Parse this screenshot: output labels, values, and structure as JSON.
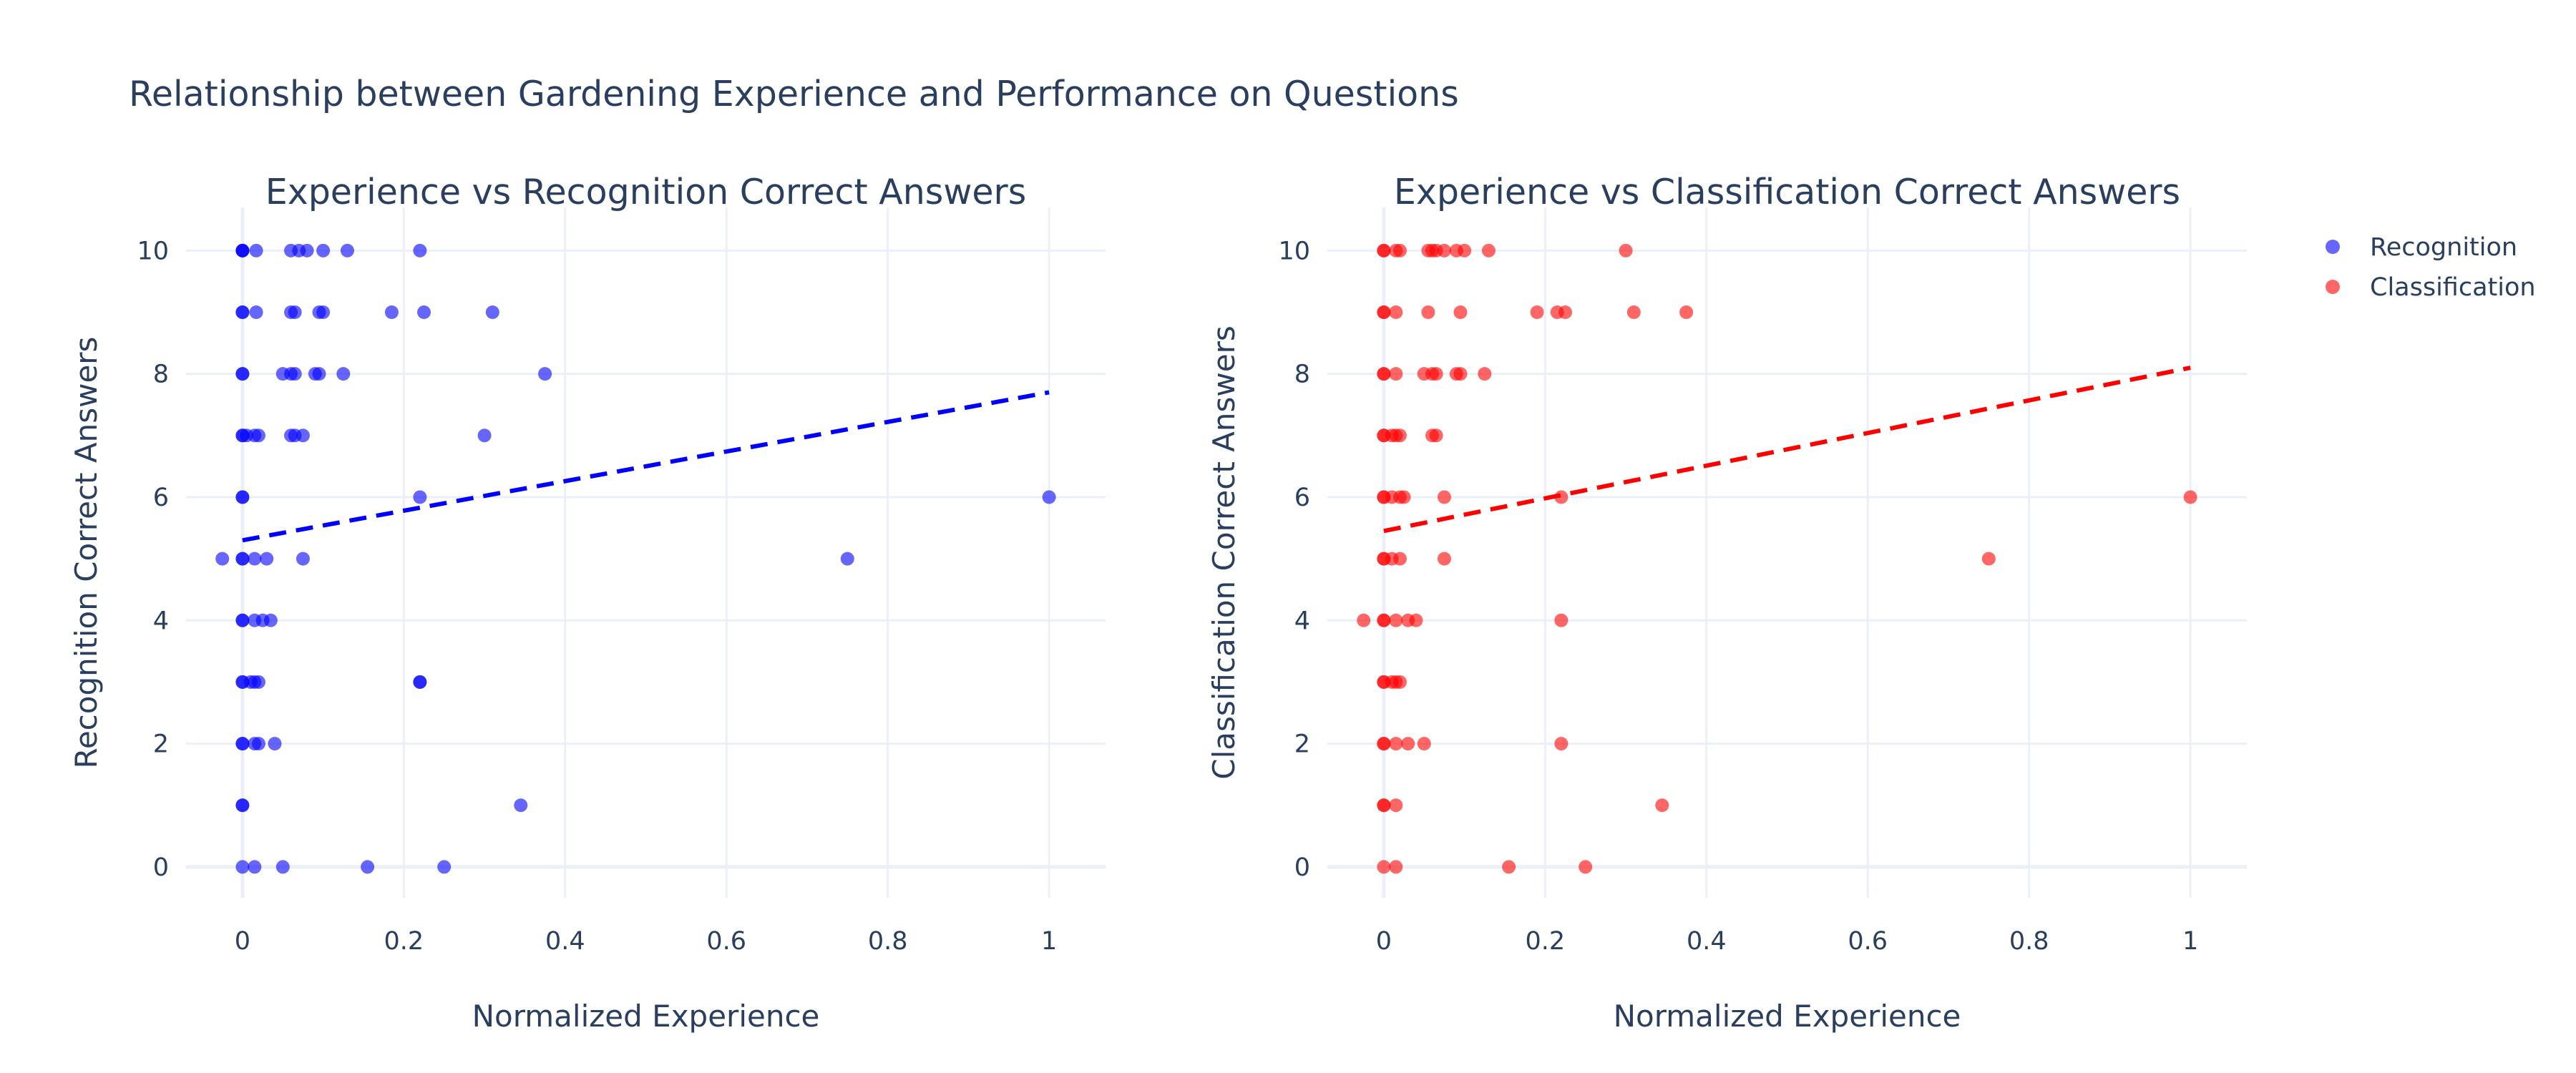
{
  "figure": {
    "title": "Relationship between Gardening Experience and Performance on Questions"
  },
  "legend": {
    "items": [
      {
        "label": "Recognition",
        "color": "#0000ff"
      },
      {
        "label": "Classification",
        "color": "#ff0000"
      }
    ]
  },
  "chart_data": [
    {
      "type": "scatter",
      "title": "Experience vs Recognition Correct Answers",
      "xlabel": "Normalized Experience",
      "ylabel": "Recognition Correct Answers",
      "xlim": [
        -0.07,
        1.07
      ],
      "ylim": [
        -0.5,
        10.7
      ],
      "xticks": [
        0,
        0.2,
        0.4,
        0.6,
        0.8,
        1
      ],
      "xtick_labels": [
        "0",
        "0.2",
        "0.4",
        "0.6",
        "0.8",
        "1"
      ],
      "yticks": [
        0,
        2,
        4,
        6,
        8,
        10
      ],
      "grid": true,
      "series": [
        {
          "name": "Recognition",
          "color": "#0000ff",
          "points": [
            [
              0,
              10
            ],
            [
              0,
              10
            ],
            [
              0,
              10
            ],
            [
              0.017,
              10
            ],
            [
              0.06,
              10
            ],
            [
              0.07,
              10
            ],
            [
              0.08,
              10
            ],
            [
              0.1,
              10
            ],
            [
              0.13,
              10
            ],
            [
              0.22,
              10
            ],
            [
              0,
              9
            ],
            [
              0,
              9
            ],
            [
              0.017,
              9
            ],
            [
              0.06,
              9
            ],
            [
              0.065,
              9
            ],
            [
              0.095,
              9
            ],
            [
              0.1,
              9
            ],
            [
              0.185,
              9
            ],
            [
              0.225,
              9
            ],
            [
              0.31,
              9
            ],
            [
              0,
              8
            ],
            [
              0,
              8
            ],
            [
              0.05,
              8
            ],
            [
              0.06,
              8
            ],
            [
              0.065,
              8
            ],
            [
              0.09,
              8
            ],
            [
              0.095,
              8
            ],
            [
              0.125,
              8
            ],
            [
              0.375,
              8
            ],
            [
              0,
              7
            ],
            [
              0,
              7
            ],
            [
              0.005,
              7
            ],
            [
              0.015,
              7
            ],
            [
              0.02,
              7
            ],
            [
              0.06,
              7
            ],
            [
              0.065,
              7
            ],
            [
              0.075,
              7
            ],
            [
              0.3,
              7
            ],
            [
              0,
              6
            ],
            [
              0,
              6
            ],
            [
              0.22,
              6
            ],
            [
              1,
              6
            ],
            [
              -0.025,
              5
            ],
            [
              0,
              5
            ],
            [
              0,
              5
            ],
            [
              0.015,
              5
            ],
            [
              0.03,
              5
            ],
            [
              0.075,
              5
            ],
            [
              0.75,
              5
            ],
            [
              0,
              4
            ],
            [
              0,
              4
            ],
            [
              0.015,
              4
            ],
            [
              0.025,
              4
            ],
            [
              0.035,
              4
            ],
            [
              0,
              3
            ],
            [
              0,
              3
            ],
            [
              0.01,
              3
            ],
            [
              0.015,
              3
            ],
            [
              0.02,
              3
            ],
            [
              0.22,
              3
            ],
            [
              0.22,
              3
            ],
            [
              0,
              2
            ],
            [
              0,
              2
            ],
            [
              0.015,
              2
            ],
            [
              0.02,
              2
            ],
            [
              0.04,
              2
            ],
            [
              0,
              1
            ],
            [
              0,
              1
            ],
            [
              0.345,
              1
            ],
            [
              0,
              0
            ],
            [
              0.015,
              0
            ],
            [
              0.05,
              0
            ],
            [
              0.155,
              0
            ],
            [
              0.25,
              0
            ]
          ]
        },
        {
          "name": "Trend",
          "color": "#0000ff",
          "line": [
            [
              0,
              5.3
            ],
            [
              1,
              7.7
            ]
          ],
          "dash": true
        }
      ]
    },
    {
      "type": "scatter",
      "title": "Experience vs Classification Correct Answers",
      "xlabel": "Normalized Experience",
      "ylabel": "Classification Correct Answers",
      "xlim": [
        -0.07,
        1.07
      ],
      "ylim": [
        -0.5,
        10.7
      ],
      "xticks": [
        0,
        0.2,
        0.4,
        0.6,
        0.8,
        1
      ],
      "xtick_labels": [
        "0",
        "0.2",
        "0.4",
        "0.6",
        "0.8",
        "1"
      ],
      "yticks": [
        0,
        2,
        4,
        6,
        8,
        10
      ],
      "grid": true,
      "series": [
        {
          "name": "Classification",
          "color": "#ff0000",
          "points": [
            [
              0,
              10
            ],
            [
              0,
              10
            ],
            [
              0.015,
              10
            ],
            [
              0.02,
              10
            ],
            [
              0.055,
              10
            ],
            [
              0.06,
              10
            ],
            [
              0.065,
              10
            ],
            [
              0.075,
              10
            ],
            [
              0.09,
              10
            ],
            [
              0.1,
              10
            ],
            [
              0.13,
              10
            ],
            [
              0.3,
              10
            ],
            [
              0,
              9
            ],
            [
              0,
              9
            ],
            [
              0.015,
              9
            ],
            [
              0.055,
              9
            ],
            [
              0.095,
              9
            ],
            [
              0.19,
              9
            ],
            [
              0.215,
              9
            ],
            [
              0.225,
              9
            ],
            [
              0.31,
              9
            ],
            [
              0.375,
              9
            ],
            [
              0,
              8
            ],
            [
              0,
              8
            ],
            [
              0.015,
              8
            ],
            [
              0.05,
              8
            ],
            [
              0.06,
              8
            ],
            [
              0.065,
              8
            ],
            [
              0.09,
              8
            ],
            [
              0.095,
              8
            ],
            [
              0.125,
              8
            ],
            [
              0,
              7
            ],
            [
              0,
              7
            ],
            [
              0.01,
              7
            ],
            [
              0.015,
              7
            ],
            [
              0.02,
              7
            ],
            [
              0.06,
              7
            ],
            [
              0.065,
              7
            ],
            [
              0,
              6
            ],
            [
              0,
              6
            ],
            [
              0.01,
              6
            ],
            [
              0.02,
              6
            ],
            [
              0.025,
              6
            ],
            [
              0.075,
              6
            ],
            [
              0.22,
              6
            ],
            [
              1,
              6
            ],
            [
              0,
              5
            ],
            [
              0,
              5
            ],
            [
              0.01,
              5
            ],
            [
              0.02,
              5
            ],
            [
              0.075,
              5
            ],
            [
              0.75,
              5
            ],
            [
              -0.025,
              4
            ],
            [
              0,
              4
            ],
            [
              0,
              4
            ],
            [
              0.015,
              4
            ],
            [
              0.03,
              4
            ],
            [
              0.04,
              4
            ],
            [
              0.22,
              4
            ],
            [
              0,
              3
            ],
            [
              0,
              3
            ],
            [
              0.01,
              3
            ],
            [
              0.015,
              3
            ],
            [
              0.02,
              3
            ],
            [
              0,
              2
            ],
            [
              0,
              2
            ],
            [
              0.015,
              2
            ],
            [
              0.03,
              2
            ],
            [
              0.05,
              2
            ],
            [
              0.22,
              2
            ],
            [
              0,
              1
            ],
            [
              0,
              1
            ],
            [
              0.015,
              1
            ],
            [
              0.345,
              1
            ],
            [
              0,
              0
            ],
            [
              0.015,
              0
            ],
            [
              0.155,
              0
            ],
            [
              0.25,
              0
            ]
          ]
        },
        {
          "name": "Trend",
          "color": "#ff0000",
          "line": [
            [
              0,
              5.45
            ],
            [
              1,
              8.1
            ]
          ],
          "dash": true
        }
      ]
    }
  ]
}
